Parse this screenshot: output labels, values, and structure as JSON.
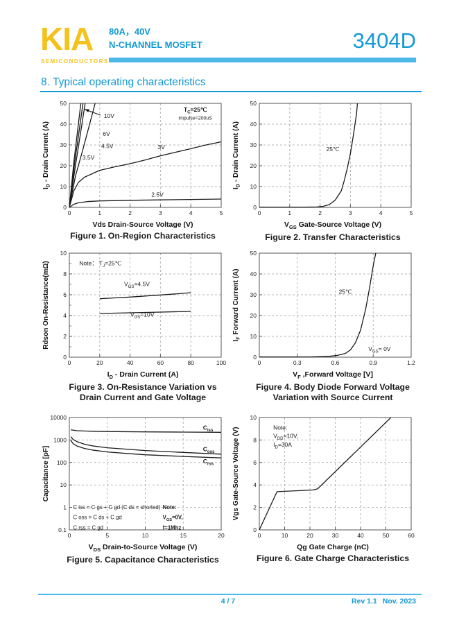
{
  "header": {
    "logo": "KIA",
    "logo_sub": "SEMICONDUCTORS",
    "rating": "80A，40V",
    "device_type": "N-CHANNEL MOSFET",
    "part_number": "3404D"
  },
  "section_title": "8. Typical operating characteristics",
  "footer": {
    "page": "4 / 7",
    "revision": "Rev 1.1",
    "date": "Nov. 2023"
  },
  "colors": {
    "accent": "#1199d6",
    "accent_bar": "#4db9e8",
    "logo_yellow": "#f5c21b",
    "ink": "#1a1a1a",
    "grid": "#b5b5b5"
  },
  "chart_data": [
    {
      "id": "figure-1",
      "type": "line",
      "caption": [
        "Figure 1. On-Region Characteristics"
      ],
      "xlabel": "Vds Drain-Source Voltage (V)",
      "ylabel": "I_{D} - Drain Current (A)",
      "xlim": [
        0,
        5
      ],
      "ylim": [
        0,
        50
      ],
      "xticks": [
        0,
        1,
        2,
        3,
        4,
        5
      ],
      "yticks": [
        0,
        10,
        20,
        30,
        40,
        50
      ],
      "grid": true,
      "series": [
        {
          "name": "vgs-10v",
          "points": [
            [
              0,
              0
            ],
            [
              0.15,
              22
            ],
            [
              0.38,
              50
            ]
          ]
        },
        {
          "name": "vgs-6v",
          "points": [
            [
              0,
              0
            ],
            [
              0.18,
              22
            ],
            [
              0.45,
              50
            ]
          ]
        },
        {
          "name": "vgs-4.5v",
          "points": [
            [
              0,
              0
            ],
            [
              0.2,
              20
            ],
            [
              0.52,
              50
            ]
          ]
        },
        {
          "name": "vgs-3.5v",
          "points": [
            [
              0,
              0
            ],
            [
              0.2,
              15
            ],
            [
              0.45,
              28
            ],
            [
              0.85,
              50
            ]
          ]
        },
        {
          "name": "vgs-3v",
          "points": [
            [
              0,
              0
            ],
            [
              0.15,
              8
            ],
            [
              0.3,
              12
            ],
            [
              0.5,
              14.5
            ],
            [
              0.8,
              16.5
            ],
            [
              1,
              17.8
            ],
            [
              1.5,
              19.5
            ],
            [
              2,
              21
            ],
            [
              2.5,
              22.8
            ],
            [
              3,
              24.8
            ],
            [
              3.5,
              26.5
            ],
            [
              4,
              28.2
            ],
            [
              4.5,
              30
            ],
            [
              5,
              31.5
            ]
          ]
        },
        {
          "name": "vgs-2.5v",
          "points": [
            [
              0,
              0
            ],
            [
              0.15,
              1.5
            ],
            [
              0.3,
              2.2
            ],
            [
              0.6,
              2.8
            ],
            [
              1,
              3.1
            ],
            [
              2,
              3.4
            ],
            [
              3,
              3.6
            ],
            [
              4,
              3.8
            ],
            [
              5,
              4
            ]
          ]
        }
      ],
      "annotations": [
        {
          "text": "T_{C}=25℃",
          "x": 4.15,
          "y": 47,
          "bold": true
        },
        {
          "text": "impulse=200uS",
          "x": 4.15,
          "y": 43.2,
          "size": 7
        },
        {
          "text": "10V",
          "x": 1.31,
          "y": 44
        },
        {
          "text": "6V",
          "x": 1.22,
          "y": 35.3
        },
        {
          "text": "4.5V",
          "x": 1.25,
          "y": 29.5
        },
        {
          "text": "3.5V",
          "x": 0.63,
          "y": 24
        },
        {
          "text": "3V",
          "x": 3.03,
          "y": 29
        },
        {
          "text": "2.5V",
          "x": 2.9,
          "y": 6.2
        }
      ],
      "arrows": [
        {
          "from": [
            1.03,
            44.3
          ],
          "to": [
            0.5,
            47.2
          ]
        }
      ]
    },
    {
      "id": "figure-2",
      "type": "line",
      "caption": [
        "Figure 2. Transfer Characteristics"
      ],
      "xlabel": "V_{GS} Gate-Source Voltage (V)",
      "ylabel": "I_{D} - Drain Current (A)",
      "xlim": [
        0,
        5
      ],
      "ylim": [
        0,
        50
      ],
      "xticks": [
        0,
        1,
        2,
        3,
        4,
        5
      ],
      "yticks": [
        0,
        10,
        20,
        30,
        40,
        50
      ],
      "grid": true,
      "series": [
        {
          "name": "25c",
          "points": [
            [
              0,
              0.1
            ],
            [
              1.5,
              0.1
            ],
            [
              1.9,
              0.2
            ],
            [
              2.1,
              0.5
            ],
            [
              2.3,
              1.3
            ],
            [
              2.5,
              3.5
            ],
            [
              2.7,
              8
            ],
            [
              2.8,
              13
            ],
            [
              2.9,
              19
            ],
            [
              3.0,
              26
            ],
            [
              3.1,
              35
            ],
            [
              3.2,
              45
            ],
            [
              3.23,
              50
            ]
          ]
        }
      ],
      "annotations": [
        {
          "text": "25℃",
          "x": 2.42,
          "y": 28
        }
      ]
    },
    {
      "id": "figure-3",
      "type": "line",
      "caption": [
        "Figure 3. On-Resistance Variation  vs",
        "Drain Current and Gate Voltage"
      ],
      "xlabel": "I_{D} - Drain Current (A)",
      "ylabel": "Rdson On-Resistance(mΩ)",
      "xlim": [
        0,
        100
      ],
      "ylim": [
        0,
        10
      ],
      "xticks": [
        0,
        20,
        40,
        60,
        80,
        100
      ],
      "yticks": [
        0,
        2,
        4,
        6,
        8,
        10
      ],
      "yticks_minor": [
        1,
        3,
        5,
        7,
        9
      ],
      "grid": true,
      "series": [
        {
          "name": "vgs-4.5v",
          "points": [
            [
              20,
              5.62
            ],
            [
              30,
              5.7
            ],
            [
              40,
              5.78
            ],
            [
              50,
              5.88
            ],
            [
              60,
              5.98
            ],
            [
              70,
              6.08
            ],
            [
              80,
              6.2
            ]
          ]
        },
        {
          "name": "vgs-10v",
          "points": [
            [
              20,
              4.2
            ],
            [
              40,
              4.27
            ],
            [
              60,
              4.33
            ],
            [
              80,
              4.4
            ]
          ]
        }
      ],
      "annotations": [
        {
          "text": "Note：  T_{J}=25℃",
          "x": 6.5,
          "y": 9.05,
          "anchor": "start"
        },
        {
          "text": "V_{GS}=4.5V",
          "x": 44.5,
          "y": 7.05
        },
        {
          "text": "V_{GS}=10V",
          "x": 48,
          "y": 4.1
        }
      ]
    },
    {
      "id": "figure-4",
      "type": "line",
      "caption": [
        "Figure 4. Body Diode Forward Voltage",
        "Variation with Source Current"
      ],
      "xlabel": "V_{F} ,Forward Voltage [V]",
      "ylabel": "I_{F} Forward Current (A)",
      "xlim": [
        0,
        1.2
      ],
      "ylim": [
        0,
        50
      ],
      "xticks": [
        0,
        0.3,
        0.6,
        0.9,
        1.2
      ],
      "yticks": [
        0,
        10,
        20,
        30,
        40,
        50
      ],
      "grid": true,
      "series": [
        {
          "name": "25c",
          "points": [
            [
              0,
              0.1
            ],
            [
              0.4,
              0.15
            ],
            [
              0.55,
              0.4
            ],
            [
              0.62,
              0.9
            ],
            [
              0.68,
              1.8
            ],
            [
              0.72,
              3.5
            ],
            [
              0.76,
              7
            ],
            [
              0.8,
              13
            ],
            [
              0.84,
              23
            ],
            [
              0.87,
              33
            ],
            [
              0.9,
              44
            ],
            [
              0.92,
              50
            ]
          ]
        }
      ],
      "annotations": [
        {
          "text": "25℃",
          "x": 0.68,
          "y": 31.5
        },
        {
          "text": "V_{GS}= 0V",
          "x": 0.95,
          "y": 4
        }
      ]
    },
    {
      "id": "figure-5",
      "type": "line",
      "ylog": true,
      "caption": [
        "Figure 5. Capacitance Characteristics"
      ],
      "xlabel": "V_{DS}  Drain-to-Source Voltage (V)",
      "ylabel": "Capacitance [pF]",
      "xlim": [
        0,
        20
      ],
      "ylim": [
        0.1,
        10000
      ],
      "xticks": [
        0,
        5,
        10,
        15,
        20
      ],
      "yticks": [
        0.1,
        1,
        10,
        100,
        1000,
        10000
      ],
      "grid": true,
      "series": [
        {
          "name": "ciss",
          "points": [
            [
              0.2,
              2850
            ],
            [
              1,
              2600
            ],
            [
              3,
              2450
            ],
            [
              5,
              2380
            ],
            [
              10,
              2300
            ],
            [
              15,
              2250
            ],
            [
              20,
              2200
            ]
          ]
        },
        {
          "name": "coss",
          "points": [
            [
              0.2,
              1400
            ],
            [
              0.5,
              1050
            ],
            [
              1,
              850
            ],
            [
              2,
              650
            ],
            [
              3,
              550
            ],
            [
              5,
              450
            ],
            [
              8,
              380
            ],
            [
              10,
              340
            ],
            [
              15,
              280
            ],
            [
              20,
              235
            ]
          ]
        },
        {
          "name": "crss",
          "points": [
            [
              0.2,
              950
            ],
            [
              0.5,
              680
            ],
            [
              1,
              540
            ],
            [
              2,
              420
            ],
            [
              3,
              360
            ],
            [
              5,
              295
            ],
            [
              8,
              245
            ],
            [
              10,
              220
            ],
            [
              15,
              185
            ],
            [
              20,
              160
            ]
          ]
        }
      ],
      "annotations": [
        {
          "text": "C_{iss}",
          "x": 17.6,
          "y": 3600,
          "bold": true,
          "anchor": "start"
        },
        {
          "text": "C_{oss}",
          "x": 17.6,
          "y": 400,
          "bold": true,
          "anchor": "start"
        },
        {
          "text": "C_{rss}",
          "x": 17.6,
          "y": 115,
          "bold": true,
          "anchor": "start"
        },
        {
          "text": "C iss = C gs + C gd (C ds = shorted)",
          "x": 0.5,
          "y": 1.05,
          "anchor": "start",
          "size": 7.8
        },
        {
          "text": "C oss = C ds + C gd",
          "x": 0.5,
          "y": 0.37,
          "anchor": "start",
          "size": 7.8
        },
        {
          "text": "C rss = C gd",
          "x": 0.5,
          "y": 0.13,
          "anchor": "start",
          "size": 7.8
        },
        {
          "text": "Note:",
          "x": 12.3,
          "y": 1.05,
          "anchor": "start",
          "size": 7.8,
          "bold": true
        },
        {
          "text": "V_{GS}=0V,",
          "x": 12.3,
          "y": 0.37,
          "anchor": "start",
          "size": 7.8,
          "bold": true
        },
        {
          "text": "f=1Mhz",
          "x": 12.3,
          "y": 0.13,
          "anchor": "start",
          "size": 7.8,
          "bold": true
        }
      ]
    },
    {
      "id": "figure-6",
      "type": "line",
      "caption": [
        "Figure 6. Gate Charge Characteristics"
      ],
      "xlabel": "Qg Gate Charge (nC)",
      "ylabel": "Vgs Gate-Source Voltage (V)",
      "xlim": [
        0,
        60
      ],
      "ylim": [
        0,
        10
      ],
      "xticks": [
        0,
        10,
        20,
        30,
        40,
        50,
        60
      ],
      "yticks": [
        0,
        2,
        4,
        6,
        8,
        10
      ],
      "grid": true,
      "series": [
        {
          "name": "gate-charge",
          "points": [
            [
              0,
              0
            ],
            [
              7,
              3.4
            ],
            [
              21,
              3.55
            ],
            [
              23,
              3.65
            ],
            [
              52,
              10
            ]
          ]
        }
      ],
      "annotations": [
        {
          "text": "Note:",
          "x": 5.5,
          "y": 9.1,
          "anchor": "start"
        },
        {
          "text": "V_{DD}=10V,",
          "x": 5.5,
          "y": 8.35,
          "anchor": "start"
        },
        {
          "text": "I_{D}=30A",
          "x": 5.5,
          "y": 7.6,
          "anchor": "start"
        }
      ]
    }
  ]
}
